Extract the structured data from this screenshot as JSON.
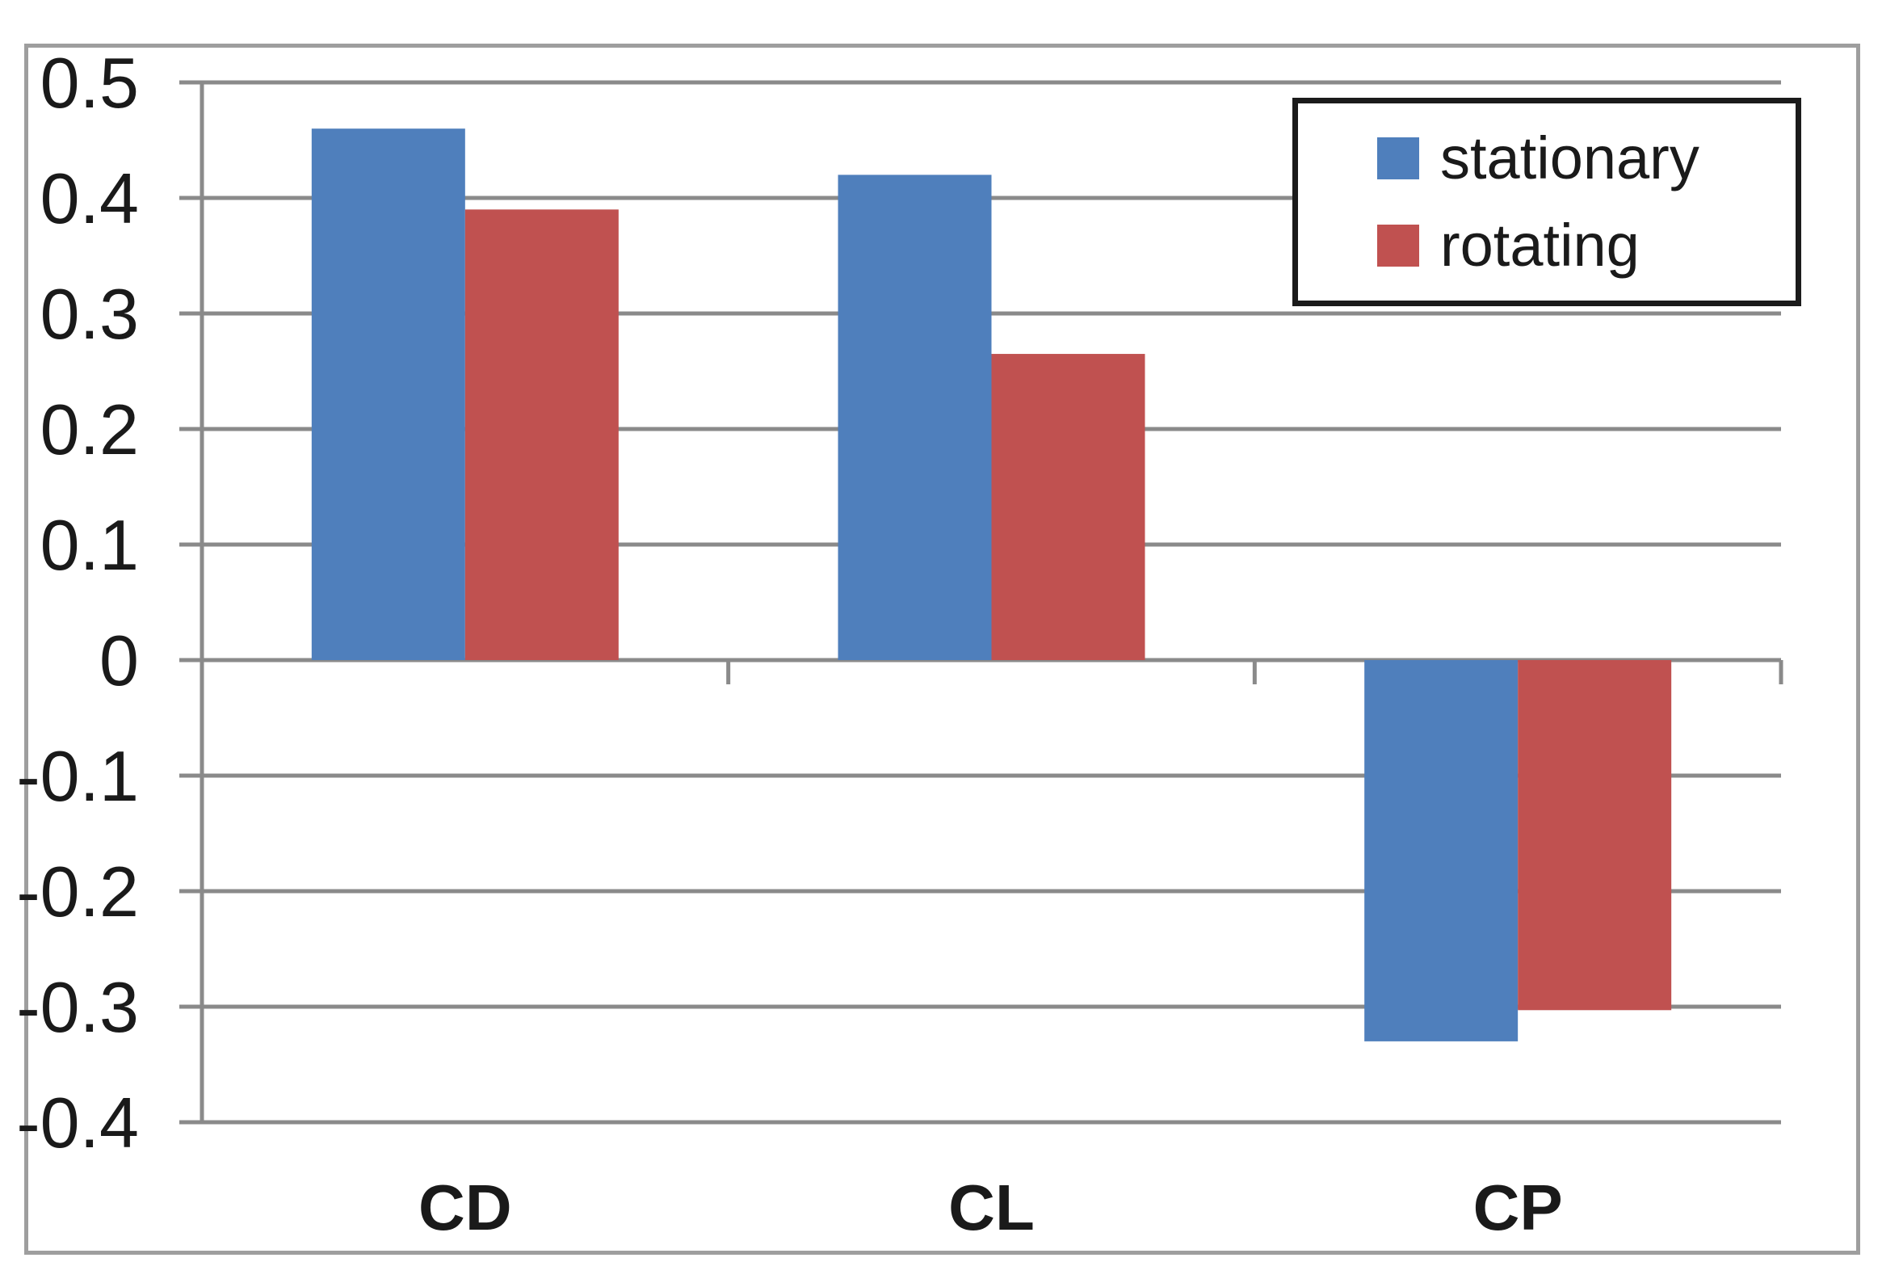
{
  "figure": {
    "background": "#ffffff",
    "border_color": "#9e9e9e"
  },
  "chart_data": {
    "type": "bar",
    "title": "",
    "xlabel": "",
    "ylabel": "",
    "categories": [
      "CD",
      "CL",
      "CP"
    ],
    "series": [
      {
        "name": "stationary",
        "color": "#4F7FBC",
        "values": [
          0.46,
          0.42,
          -0.33
        ]
      },
      {
        "name": "rotating",
        "color": "#C05150",
        "values": [
          0.39,
          0.265,
          -0.303
        ]
      }
    ],
    "ylim": [
      -0.4,
      0.5
    ],
    "ytick_step": 0.1,
    "ytick_labels": [
      "0.5",
      "0.4",
      "0.3",
      "0.2",
      "0.1",
      "0",
      "-0.1",
      "-0.2",
      "-0.3",
      "-0.4"
    ],
    "grid": true,
    "gridline_color": "#8a8a8a",
    "axis_color": "#8a8a8a",
    "text_color": "#1a1a1a",
    "legend_position": "top-right"
  },
  "legend": {
    "border_color": "#1b1b1b",
    "items": [
      {
        "label": "stationary",
        "color": "#4F7FBC"
      },
      {
        "label": "rotating",
        "color": "#C05150"
      }
    ]
  }
}
